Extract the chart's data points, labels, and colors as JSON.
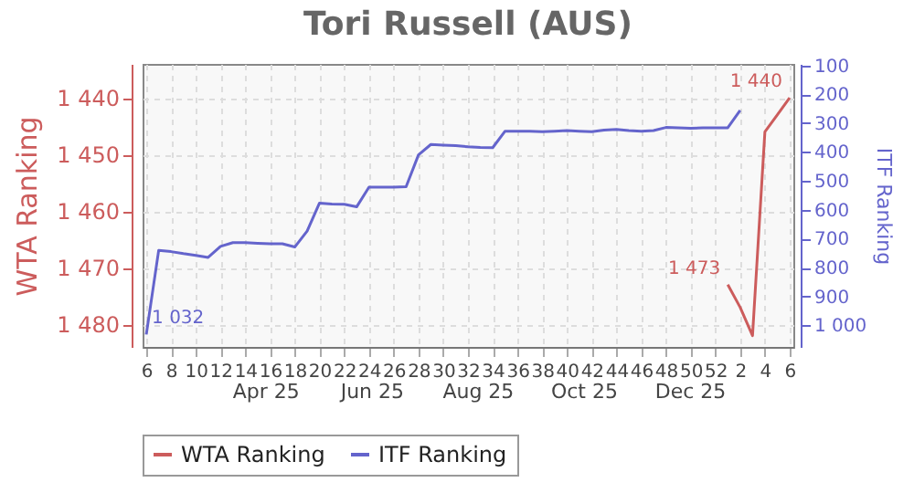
{
  "chart_data": {
    "type": "line",
    "title": "Tori Russell (AUS)",
    "ylabel": "WTA Ranking",
    "y2label": "ITF Ranking",
    "categories": [
      "6",
      null,
      "8",
      null,
      "10",
      null,
      "12",
      null,
      "14",
      null,
      "16",
      null,
      "18",
      null,
      "20",
      null,
      "22",
      null,
      "24",
      null,
      "26",
      null,
      "28",
      null,
      "30",
      null,
      "32",
      null,
      "34",
      null,
      "36",
      null,
      "38",
      null,
      "40",
      null,
      "42",
      null,
      "44",
      null,
      "46",
      null,
      "48",
      null,
      "50",
      null,
      "52",
      null,
      "2",
      null,
      "4",
      null,
      "6"
    ],
    "series": [
      {
        "name": "WTA Ranking",
        "color": "#cc5c5c",
        "values": [
          null,
          null,
          null,
          null,
          null,
          null,
          null,
          null,
          null,
          null,
          null,
          null,
          null,
          null,
          null,
          null,
          null,
          null,
          null,
          null,
          null,
          null,
          null,
          null,
          null,
          null,
          null,
          null,
          null,
          null,
          null,
          null,
          null,
          null,
          null,
          null,
          null,
          null,
          null,
          null,
          null,
          null,
          null,
          null,
          null,
          null,
          null,
          1473,
          1477,
          1482,
          1446,
          1443,
          1440
        ],
        "value_labels": [
          null,
          null,
          null,
          null,
          null,
          null,
          null,
          null,
          null,
          null,
          null,
          null,
          null,
          null,
          null,
          null,
          null,
          null,
          null,
          null,
          null,
          null,
          null,
          null,
          null,
          null,
          null,
          null,
          null,
          null,
          null,
          null,
          null,
          null,
          null,
          null,
          null,
          null,
          null,
          null,
          null,
          null,
          null,
          null,
          null,
          null,
          null,
          "1 473",
          null,
          null,
          null,
          null,
          "1 440"
        ]
      },
      {
        "name": "ITF Ranking",
        "color": "#6464cc",
        "axis": "y2",
        "values": [
          1032,
          741,
          745,
          752,
          758,
          765,
          727,
          714,
          714,
          716,
          718,
          718,
          729,
          674,
          577,
          580,
          581,
          590,
          522,
          522,
          522,
          520,
          410,
          374,
          376,
          378,
          382,
          384,
          385,
          328,
          328,
          328,
          330,
          328,
          326,
          328,
          330,
          324,
          322,
          326,
          328,
          326,
          315,
          316,
          318,
          316,
          316,
          316,
          256,
          null,
          null,
          null,
          null
        ],
        "value_labels": [
          "1 032",
          null,
          null,
          null,
          null,
          null,
          null,
          null,
          null,
          null,
          null,
          null,
          null,
          null,
          null,
          null,
          null,
          null,
          null,
          null,
          null,
          null,
          null,
          null,
          null,
          null,
          null,
          null,
          null,
          null,
          null,
          null,
          null,
          null,
          null,
          null,
          null,
          null,
          null,
          null,
          null,
          null,
          null,
          null,
          null,
          null,
          null,
          null,
          null,
          null,
          null,
          null,
          null
        ]
      }
    ],
    "ylim": [
      1484,
      1434
    ],
    "yticks": [
      {
        "value": 1440,
        "label": "1 440"
      },
      {
        "value": 1450,
        "label": "1 450"
      },
      {
        "value": 1460,
        "label": "1 460"
      },
      {
        "value": 1470,
        "label": "1 470"
      },
      {
        "value": 1480,
        "label": "1 480"
      }
    ],
    "y2lim": [
      1075,
      95
    ],
    "y2ticks": [
      100,
      200,
      300,
      400,
      500,
      600,
      700,
      800,
      900,
      {
        "value": 1000,
        "label": "1 000"
      }
    ],
    "annotations": [
      "Apr 25",
      "Jun 25",
      "Aug 25",
      "Oct 25",
      "Dec 25"
    ],
    "grid": true,
    "legend": "bottom"
  }
}
